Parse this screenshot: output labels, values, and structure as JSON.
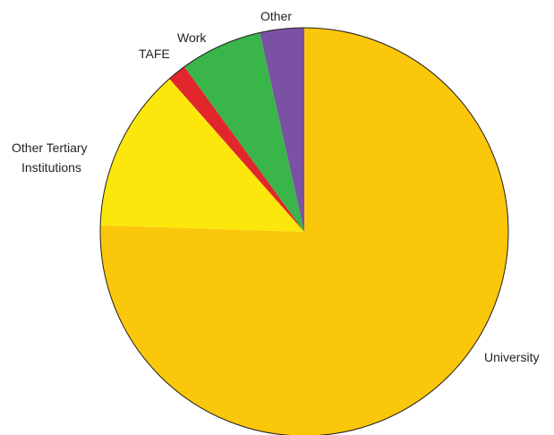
{
  "chart_data": {
    "type": "pie",
    "title": "",
    "start_angle_deg": 0,
    "direction": "clockwise",
    "slices": [
      {
        "label": "University",
        "value": 75.5,
        "color": "#fbc70a"
      },
      {
        "label": "Other Tertiary Institutions",
        "value": 13.0,
        "color": "#fce70d"
      },
      {
        "label": "TAFE",
        "value": 1.5,
        "color": "#e1272b"
      },
      {
        "label": "Work",
        "value": 6.5,
        "color": "#3ab54a"
      },
      {
        "label": "Other",
        "value": 3.5,
        "color": "#7b52a3"
      }
    ],
    "labels": {
      "university": "University",
      "other_tertiary_line1": "Other Tertiary",
      "other_tertiary_line2": "Institutions",
      "tafe": "TAFE",
      "work": "Work",
      "other": "Other"
    }
  }
}
